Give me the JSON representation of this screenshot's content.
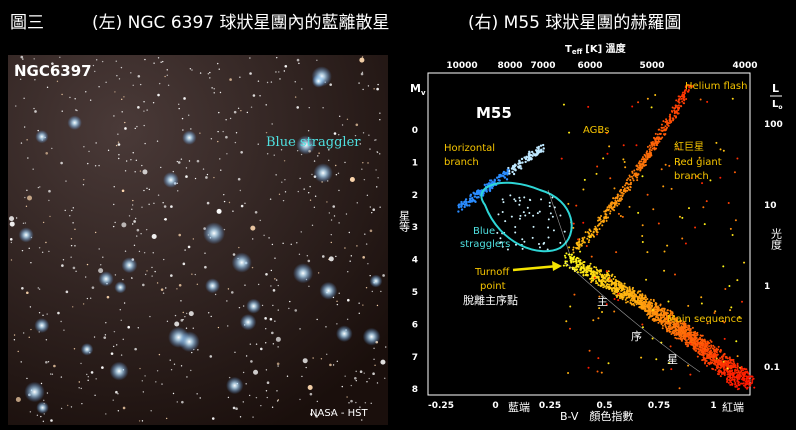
{
  "header": {
    "title_parts": [
      "圖三",
      "(左) NGC 6397 球狀星團內的藍離散星",
      "(右) M55 球狀星團的赫羅圖"
    ]
  },
  "left_image": {
    "name": "NGC6397",
    "annotation": "Blue straggler",
    "credit": "NASA - HST"
  },
  "right_chart": {
    "name": "M55",
    "top_axis_title": "T",
    "top_axis_sub": "eff",
    "top_axis_unit": "[K]  溫度",
    "top_ticks": [
      "10000",
      "8000",
      "7000",
      "6000",
      "5000",
      "4000"
    ],
    "left_axis_title": "M",
    "left_axis_sub": "v",
    "left_axis_cn": "星等",
    "left_ticks": [
      "0",
      "1",
      "2",
      "3",
      "4",
      "5",
      "6",
      "7",
      "8"
    ],
    "right_axis_title": "L",
    "right_axis_sub": "L",
    "right_axis_sub2": "o",
    "right_axis_cn": "光度",
    "right_ticks": [
      "100",
      "10",
      "1",
      "0.1"
    ],
    "bottom_ticks": [
      "-0.25",
      "0",
      "0.25",
      "0.5",
      "0.75",
      "1"
    ],
    "bottom_axis_title": "B-V　顏色指數",
    "bottom_blue": "藍端",
    "bottom_red": "紅端",
    "labels": {
      "helium_flash": "Helium flash",
      "agbs": "AGBs",
      "horizontal": "Horizontal",
      "branch": "branch",
      "rg_cn": "紅巨星",
      "rg1": "Red giant",
      "rg2": "branch",
      "bs1": "Blue",
      "bs2": "stragglers",
      "to1": "Turnoff",
      "to2": "point",
      "to_cn": "脫離主序點",
      "ms": "Main sequence",
      "ms_cn1": "主",
      "ms_cn2": "序",
      "ms_cn3": "星"
    }
  }
}
